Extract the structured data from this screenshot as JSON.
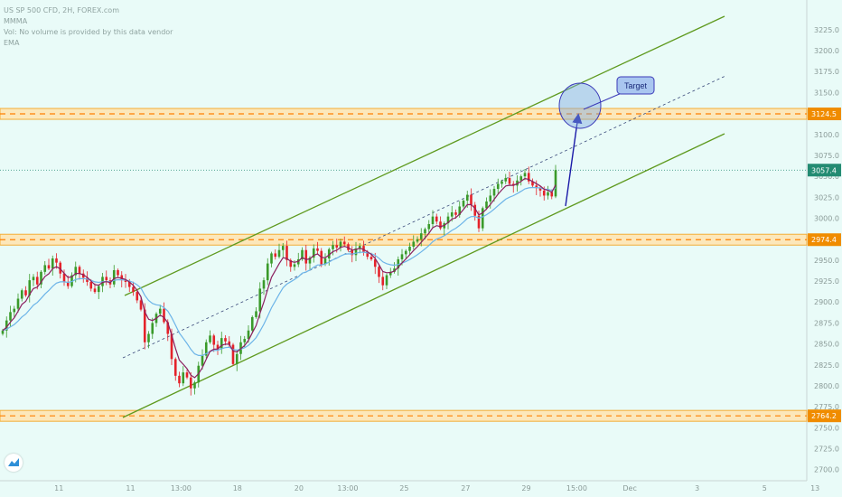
{
  "legend": {
    "symbol": "US SP 500 CFD, 2H, FOREX.com",
    "indicator1": "MMMA",
    "indicator2": "Vol: No volume is provided by this data vendor",
    "indicator3": "EMA"
  },
  "colors": {
    "background": "#e9fbf8",
    "channel": "#5f9a1f",
    "level_band": "#ffe5b4",
    "level_border": "#f5a623",
    "level_dash": "#ff7f00",
    "bull_candle": "#3a9a2a",
    "bear_candle": "#e4222a",
    "ma_fast": "#8b1f5e",
    "ma_slow": "#6cb4e8",
    "arrow": "#1a1aa8",
    "target_fill": "#7fa8e0",
    "price_label": "#f08c00",
    "current_label": "#238b72"
  },
  "icons": {
    "brand": "tradingview-logo-icon"
  },
  "chart_data": {
    "type": "candlestick",
    "title": "US SP 500 CFD, 2H, FOREX.com",
    "ylim": [
      2690,
      3255
    ],
    "y_ticks": [
      "3225.0",
      "3200.0",
      "3175.0",
      "3150.0",
      "3125.0",
      "3100.0",
      "3075.0",
      "3050.0",
      "3025.0",
      "3000.0",
      "2975.0",
      "2950.0",
      "2925.0",
      "2900.0",
      "2875.0",
      "2850.0",
      "2825.0",
      "2800.0",
      "2775.0",
      "2750.0",
      "2725.0",
      "2700.0"
    ],
    "x_ticks": [
      "11",
      "11",
      "13:00",
      "18",
      "20",
      "13:00",
      "25",
      "27",
      "29",
      "15:00",
      "Dec",
      "3",
      "5",
      "13"
    ],
    "x_tick_pos": [
      0.07,
      0.155,
      0.215,
      0.282,
      0.355,
      0.413,
      0.48,
      0.553,
      0.625,
      0.685,
      0.748,
      0.828,
      0.908,
      0.968
    ],
    "horizontal_levels": [
      {
        "label": "3124.5",
        "value": 3124.5
      },
      {
        "label": "2974.4",
        "value": 2974.4
      },
      {
        "label": "2764.2",
        "value": 2764.2
      }
    ],
    "current_price": {
      "label": "3057.4",
      "value": 3057.4
    },
    "annotation": {
      "label": "Target",
      "value": 3126
    },
    "closes": [
      2866,
      2878,
      2888,
      2892,
      2904,
      2914,
      2908,
      2926,
      2930,
      2921,
      2936,
      2944,
      2940,
      2952,
      2947,
      2934,
      2924,
      2919,
      2932,
      2942,
      2934,
      2929,
      2924,
      2916,
      2912,
      2919,
      2930,
      2926,
      2921,
      2938,
      2932,
      2926,
      2924,
      2918,
      2912,
      2902,
      2891,
      2852,
      2862,
      2875,
      2886,
      2892,
      2876,
      2862,
      2832,
      2812,
      2803,
      2816,
      2810,
      2797,
      2804,
      2824,
      2836,
      2852,
      2860,
      2849,
      2844,
      2857,
      2853,
      2849,
      2826,
      2838,
      2852,
      2856,
      2866,
      2882,
      2889,
      2916,
      2926,
      2946,
      2958,
      2954,
      2962,
      2967,
      2950,
      2942,
      2945,
      2951,
      2962,
      2946,
      2953,
      2964,
      2961,
      2945,
      2952,
      2963,
      2968,
      2965,
      2972,
      2969,
      2962,
      2956,
      2964,
      2967,
      2960,
      2954,
      2951,
      2942,
      2930,
      2920,
      2932,
      2936,
      2940,
      2951,
      2957,
      2961,
      2966,
      2972,
      2975,
      2982,
      2987,
      2993,
      3002,
      2996,
      2988,
      2994,
      3002,
      3007,
      3004,
      3014,
      3021,
      3028,
      3016,
      3003,
      2988,
      3012,
      3020,
      3027,
      3035,
      3041,
      3044,
      3048,
      3041,
      3039,
      3045,
      3050,
      3054,
      3044,
      3039,
      3036,
      3033,
      3027,
      3031,
      3026,
      3057.4
    ]
  }
}
